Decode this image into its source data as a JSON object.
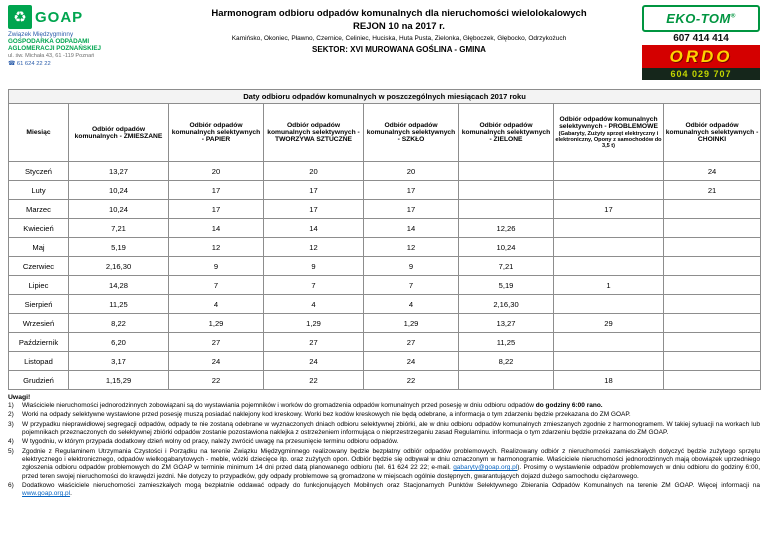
{
  "colors": {
    "goap_green": "#00a54f",
    "goap_blue": "#2a5caa",
    "ekotom_green": "#009540",
    "ordo_red": "#d40000",
    "ordo_yellow": "#ffd200"
  },
  "header": {
    "org": {
      "logo_text": "GOAP",
      "name_line1": "Związek Międzygminny",
      "name_line2": "GOSPODARKA ODPADAMI",
      "name_line3": "AGLOMERACJI POZNAŃSKIEJ",
      "address": "ul. św. Michała 43, 61 -119 Poznań",
      "phone_icon": "☎",
      "phone": "61 624 22 22"
    },
    "title_line1": "Harmonogram odbioru odpadów komunalnych dla nieruchomości wielolokalowych",
    "title_line2": "REJON 10 na 2017 r.",
    "localities": "Kamińsko, Okoniec, Pławno, Czernice, Celiniec, Huciska, Huta Pusta, Zielonka, Głęboczek, Głębocko, Odrzykożuch",
    "sector": "SEKTOR: XVI MUROWANA GOŚLINA - GMINA",
    "ekotom": {
      "name": "EKO-TOM",
      "reg": "®",
      "phone": "607 414 414"
    },
    "ordo": {
      "name": "ORDO",
      "phone": "604 029 707"
    }
  },
  "table": {
    "caption": "Daty odbioru odpadów komunalnych w poszczególnych miesiącach 2017 roku",
    "columns": [
      {
        "label": "Miesiąc"
      },
      {
        "label": "Odbiór odpadów komunalnych - ZMIESZANE"
      },
      {
        "label": "Odbiór odpadów komunalnych selektywnych - PAPIER"
      },
      {
        "label": "Odbiór odpadów komunalnych selektywnych - TWORZYWA SZTUCZNE"
      },
      {
        "label": "Odbiór odpadów komunalnych selektywnych - SZKŁO"
      },
      {
        "label": "Odbiór odpadów komunalnych selektywnych - ZIELONE"
      },
      {
        "label": "Odbiór odpadów komunalnych selektywnych - PROBLEMOWE",
        "sub": "(Gabaryty, Zużyty sprzęt elektryczny i elektroniczny, Opony z samochodów do 3,5 t)"
      },
      {
        "label": "Odbiór odpadów komunalnych selektywnych - CHOINKI"
      }
    ],
    "rows": [
      [
        "Styczeń",
        "13,27",
        "20",
        "20",
        "20",
        "",
        "",
        "24"
      ],
      [
        "Luty",
        "10,24",
        "17",
        "17",
        "17",
        "",
        "",
        "21"
      ],
      [
        "Marzec",
        "10,24",
        "17",
        "17",
        "17",
        "",
        "17",
        ""
      ],
      [
        "Kwiecień",
        "7,21",
        "14",
        "14",
        "14",
        "12,26",
        "",
        ""
      ],
      [
        "Maj",
        "5,19",
        "12",
        "12",
        "12",
        "10,24",
        "",
        ""
      ],
      [
        "Czerwiec",
        "2,16,30",
        "9",
        "9",
        "9",
        "7,21",
        "",
        ""
      ],
      [
        "Lipiec",
        "14,28",
        "7",
        "7",
        "7",
        "5,19",
        "1",
        ""
      ],
      [
        "Sierpień",
        "11,25",
        "4",
        "4",
        "4",
        "2,16,30",
        "",
        ""
      ],
      [
        "Wrzesień",
        "8,22",
        "1,29",
        "1,29",
        "1,29",
        "13,27",
        "29",
        ""
      ],
      [
        "Październik",
        "6,20",
        "27",
        "27",
        "27",
        "11,25",
        "",
        ""
      ],
      [
        "Listopad",
        "3,17",
        "24",
        "24",
        "24",
        "8,22",
        "",
        ""
      ],
      [
        "Grudzień",
        "1,15,29",
        "22",
        "22",
        "22",
        "",
        "18",
        ""
      ]
    ]
  },
  "notes": {
    "heading": "Uwagi!",
    "items": [
      {
        "num": "1)",
        "segments": [
          {
            "t": "Właściciele nieruchomości jednorodzinnych zobowiązani są do wystawiania pojemników i worków do gromadzenia  odpadów komunalnych przed posesję w dniu odbioru odpadów ",
            "s": "normal"
          },
          {
            "t": "do godziny 6:00 rano.",
            "s": "bold"
          }
        ]
      },
      {
        "num": "2)",
        "segments": [
          {
            "t": "Worki na odpady selektywne wystawione przed posesję muszą posiadać naklejony kod kreskowy. Worki bez kodów kreskowych nie będą odebrane, a informacja o tym zdarzeniu będzie przekazana do ZM GOAP.",
            "s": "normal"
          }
        ]
      },
      {
        "num": "3)",
        "segments": [
          {
            "t": "W przypadku nieprawidłowej segregacji odpadów, odpady te nie zostaną odebrane w wyznaczonych dniach odbioru selektywnej zbiórki, ale w dniu odbioru odpadów komunalnych zmieszanych zgodnie z harmonogramem. W takiej sytuacji na workach lub pojemnikach przeznaczonych do  selektywnej zbiórki odpadów zostanie pozostawiona naklejka z ostrzeżeniem informująca o nieprzestrzeganiu zasad Regulaminu. informacja o tym zdarzeniu będzie przekazana do ZM GOAP.",
            "s": "normal"
          }
        ]
      },
      {
        "num": "4)",
        "segments": [
          {
            "t": "W tygodniu, w którym przypada dodatkowy dzień wolny od pracy, należy zwrócić uwagę na przesunięcie terminu odbioru odpadów.",
            "s": "normal"
          }
        ]
      },
      {
        "num": "5)",
        "segments": [
          {
            "t": "Zgodnie z Regulaminem Utrzymania Czystości i Porządku na terenie Związku Międzygminnego realizowany będzie bezpłatny odbiór odpadów problemowych. Realizowany odbiór z nieruchomości zamieszkałych dotyczyć będzie zużytego sprzętu elektrycznego i elektronicznego, odpadów wielkogabarytowych - meble, wózki dziecięce itp. oraz zużytych opon. Odbiór będzie się odbywał w dniu oznaczonym w harmonogramie. Właściciele nieruchomości jednorodzinnych mają obowiązek uprzedniego zgłoszenia odbioru odpadów problemowych do ZM GOAP w terminie minimum 14 dni przed datą planowanego odbioru (tel. 61 624 22 22; e-mail. ",
            "s": "normal"
          },
          {
            "t": "gabaryty@goap.org.pl",
            "s": "link"
          },
          {
            "t": "). Prosimy o wystawienie odpadów problemowych w dniu odbioru do godziny 6:00, przed teren swojej nieruchomości do krawędzi jezdni. Nie dotyczy to przypadków, gdy odpady problemowe są gromadzone w miejscach ogólnie dostępnych, gwarantujących dojazd dużego samochodu ciężarowego.",
            "s": "normal"
          }
        ]
      },
      {
        "num": "6)",
        "segments": [
          {
            "t": "Dodatkowo właściciele nieruchomości zamieszkałych mogą bezpłatnie oddawać odpady do funkcjonujących Mobilnych oraz Stacjonarnych Punktów Selektywnego Zbierania Odpadów Komunalnych na terenie ZM GOAP. Więcej informacji na ",
            "s": "normal"
          },
          {
            "t": "www.goap.org.pl",
            "s": "link"
          },
          {
            "t": ".",
            "s": "normal"
          }
        ]
      }
    ]
  }
}
